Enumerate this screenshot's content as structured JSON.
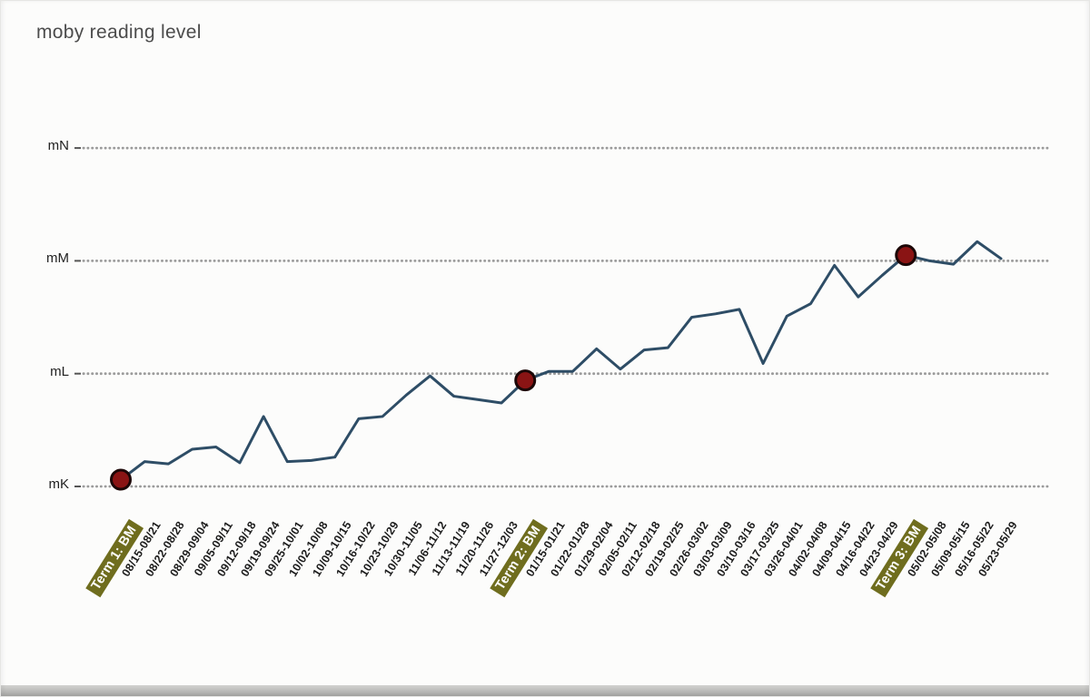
{
  "chart_data": {
    "type": "line",
    "title": "moby reading level",
    "series_name": "moby reading level",
    "categories": [
      "Term 1: BM",
      "08/15-08/21",
      "08/22-08/28",
      "08/29-09/04",
      "09/05-09/11",
      "09/12-09/18",
      "09/19-09/24",
      "09/25-10/01",
      "10/02-10/08",
      "10/09-10/15",
      "10/16-10/22",
      "10/23-10/29",
      "10/30-11/05",
      "11/06-11/12",
      "11/13-11/19",
      "11/20-11/26",
      "11/27-12/03",
      "Term 2: BM",
      "01/15-01/21",
      "01/22-01/28",
      "01/29-02/04",
      "02/05-02/11",
      "02/12-02/18",
      "02/19-02/25",
      "02/26-03/02",
      "03/03-03/09",
      "03/10-03/16",
      "03/17-03/25",
      "03/26-04/01",
      "04/02-04/08",
      "04/09-04/15",
      "04/16-04/22",
      "04/23-04/29",
      "Term 3: BM",
      "05/02-05/08",
      "05/09-05/15",
      "05/16-05/22",
      "05/23-05/29"
    ],
    "values": [
      0.06,
      0.22,
      0.2,
      0.33,
      0.35,
      0.21,
      0.62,
      0.22,
      0.23,
      0.26,
      0.6,
      0.62,
      0.81,
      0.98,
      0.8,
      0.77,
      0.74,
      0.94,
      1.02,
      1.02,
      1.22,
      1.04,
      1.21,
      1.23,
      1.5,
      1.53,
      1.57,
      1.09,
      1.51,
      1.62,
      1.96,
      1.68,
      1.87,
      2.05,
      2.0,
      1.97,
      2.17,
      2.02
    ],
    "level_scale": {
      "mK": 0,
      "mL": 1,
      "mM": 2,
      "mN": 3
    },
    "y_ticks": [
      {
        "label": "mK",
        "value": 0
      },
      {
        "label": "mL",
        "value": 1
      },
      {
        "label": "mM",
        "value": 2
      },
      {
        "label": "mN",
        "value": 3
      }
    ],
    "ylim": [
      0,
      3.3
    ],
    "term_indices": [
      0,
      17,
      33
    ],
    "benchmark_indices": [
      0,
      17,
      33
    ],
    "grid": "dotted horizontal",
    "legend": "none",
    "colors": {
      "line": "#2e4d66",
      "marker_fill": "#8a1414",
      "marker_stroke": "#1c0707",
      "term_label_bg": "#6f6d1e",
      "term_label_text": "#ffffff",
      "grid": "#9b9b9b",
      "title_text": "#4c4c4c",
      "axis_text": "#1f1f1f"
    }
  }
}
